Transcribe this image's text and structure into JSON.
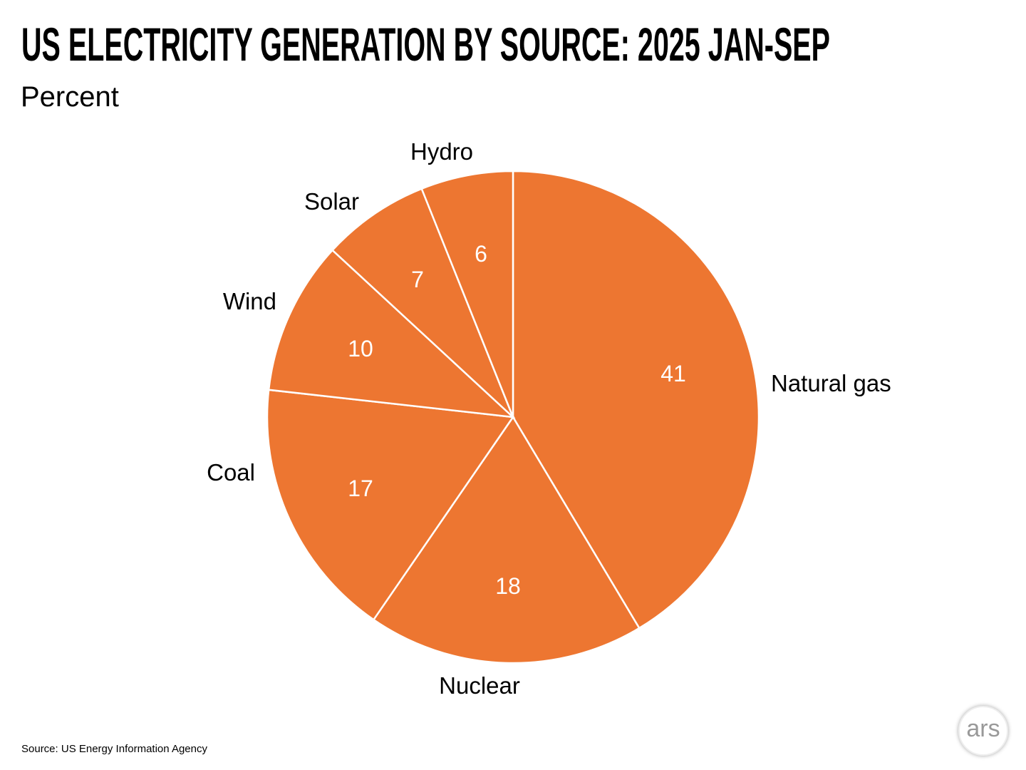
{
  "chart_data": {
    "type": "pie",
    "title": "US ELECTRICITY GENERATION BY SOURCE: 2025 JAN-SEP",
    "subtitle": "Percent",
    "source": "Source:  US Energy Information Agency",
    "categories": [
      "Natural gas",
      "Nuclear",
      "Coal",
      "Wind",
      "Solar",
      "Hydro"
    ],
    "values": [
      41,
      18,
      17,
      10,
      7,
      6
    ],
    "value_labels": [
      "41",
      "18",
      "17",
      "10",
      "7",
      "6"
    ],
    "colors": {
      "slice": "#ED7631",
      "slice_border": "#ffffff",
      "value_text": "#ffffff",
      "label_text": "#000000"
    },
    "start": "top",
    "direction": "clockwise"
  },
  "logo": {
    "text": "ars"
  }
}
